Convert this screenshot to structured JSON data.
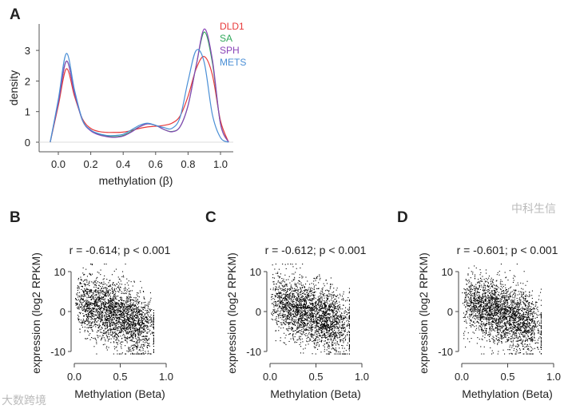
{
  "watermarks": [
    "大数跨境",
    "中科生信"
  ],
  "chart_data": [
    {
      "panel": "A",
      "type": "line",
      "xlabel": "methylation (β)",
      "ylabel": "density",
      "xlim": [
        -0.1,
        1.08
      ],
      "ylim": [
        -0.3,
        3.9
      ],
      "xticks": [
        "0.0",
        "0.2",
        "0.4",
        "0.6",
        "0.8",
        "1.0"
      ],
      "yticks": [
        "0",
        "1",
        "2",
        "3"
      ],
      "legend_position": "top-right",
      "x": [
        -0.05,
        0,
        0.05,
        0.1,
        0.15,
        0.2,
        0.25,
        0.3,
        0.35,
        0.4,
        0.45,
        0.5,
        0.55,
        0.6,
        0.65,
        0.7,
        0.75,
        0.8,
        0.85,
        0.9,
        0.95,
        1.0,
        1.05
      ],
      "series": [
        {
          "name": "DLD1",
          "color": "#e8393a",
          "values": [
            0,
            1.2,
            2.4,
            1.5,
            0.75,
            0.45,
            0.35,
            0.32,
            0.32,
            0.33,
            0.38,
            0.45,
            0.5,
            0.52,
            0.55,
            0.62,
            0.85,
            1.5,
            2.4,
            2.8,
            2.2,
            0.7,
            0
          ]
        },
        {
          "name": "SA",
          "color": "#2ea85a",
          "values": [
            0,
            1.3,
            2.65,
            1.6,
            0.7,
            0.38,
            0.26,
            0.2,
            0.18,
            0.22,
            0.35,
            0.5,
            0.6,
            0.55,
            0.42,
            0.35,
            0.5,
            1.2,
            2.5,
            3.6,
            2.6,
            0.6,
            0
          ]
        },
        {
          "name": "SPH",
          "color": "#8a45b8",
          "values": [
            0,
            1.3,
            2.65,
            1.6,
            0.7,
            0.37,
            0.24,
            0.18,
            0.16,
            0.2,
            0.33,
            0.5,
            0.6,
            0.55,
            0.42,
            0.34,
            0.5,
            1.2,
            2.5,
            3.7,
            2.7,
            0.6,
            0
          ]
        },
        {
          "name": "METS",
          "color": "#4a8fd6",
          "values": [
            0,
            1.4,
            2.9,
            1.7,
            0.72,
            0.4,
            0.28,
            0.22,
            0.22,
            0.26,
            0.4,
            0.55,
            0.62,
            0.55,
            0.48,
            0.45,
            0.8,
            2.0,
            3.0,
            2.6,
            0.9,
            0.15,
            0
          ]
        }
      ]
    },
    {
      "panel": "B",
      "type": "scatter",
      "title": "r = -0.614; p < 0.001",
      "r": -0.614,
      "xlabel": "Methylation (Beta)",
      "ylabel": "expression (log2 RPKM)",
      "xlim": [
        0,
        1
      ],
      "ylim": [
        -12,
        13
      ],
      "xticks": [
        "0.0",
        "0.5",
        "1.0"
      ],
      "yticks": [
        "-10",
        "0",
        "10"
      ],
      "n_points": 2500
    },
    {
      "panel": "C",
      "type": "scatter",
      "title": "r = -0.612; p < 0.001",
      "r": -0.612,
      "xlabel": "Methylation (Beta)",
      "ylabel": "expression (log2 RPKM)",
      "xlim": [
        0,
        1
      ],
      "ylim": [
        -12,
        13
      ],
      "xticks": [
        "0.0",
        "0.5",
        "1.0"
      ],
      "yticks": [
        "-10",
        "0",
        "10"
      ],
      "n_points": 2500
    },
    {
      "panel": "D",
      "type": "scatter",
      "title": "r = -0.601; p < 0.001",
      "r": -0.601,
      "xlabel": "Methylation (Beta)",
      "ylabel": "expression (log2 RPKM)",
      "xlim": [
        0,
        1
      ],
      "ylim": [
        -12,
        13
      ],
      "xticks": [
        "0.0",
        "0.5",
        "1.0"
      ],
      "yticks": [
        "-10",
        "0",
        "10"
      ],
      "n_points": 2500
    }
  ]
}
